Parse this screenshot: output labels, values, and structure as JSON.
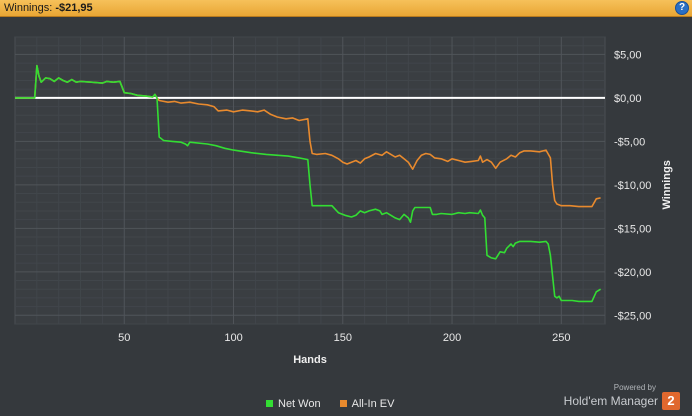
{
  "header": {
    "label": "Winnings:",
    "value": "-$21,95",
    "help_icon": "?"
  },
  "chart_data": {
    "type": "line",
    "title": "",
    "xlabel": "Hands",
    "ylabel": "Winnings",
    "xlim": [
      0,
      270
    ],
    "ylim": [
      -26,
      7
    ],
    "x_ticks": [
      50,
      100,
      150,
      200,
      250
    ],
    "x_tick_labels": [
      "50",
      "100",
      "150",
      "200",
      "250"
    ],
    "y_ticks": [
      5,
      0,
      -5,
      -10,
      -15,
      -20,
      -25
    ],
    "y_tick_labels": [
      "$5,00",
      "$0,00",
      "-$5,00",
      "-$10,00",
      "-$15,00",
      "-$20,00",
      "-$25,00"
    ],
    "grid": true,
    "legend_position": "bottom-center",
    "zero_line_color": "#ffffff",
    "series": [
      {
        "name": "Net Won",
        "color": "#33dd33",
        "points": [
          [
            0,
            0
          ],
          [
            9,
            0
          ],
          [
            10,
            3.7
          ],
          [
            11,
            2.5
          ],
          [
            12,
            1.8
          ],
          [
            14,
            2.3
          ],
          [
            16,
            2.2
          ],
          [
            18,
            1.9
          ],
          [
            20,
            2.3
          ],
          [
            22,
            2.0
          ],
          [
            24,
            1.8
          ],
          [
            26,
            2.1
          ],
          [
            28,
            1.8
          ],
          [
            30,
            1.9
          ],
          [
            35,
            1.8
          ],
          [
            40,
            1.7
          ],
          [
            42,
            1.9
          ],
          [
            45,
            1.8
          ],
          [
            48,
            1.9
          ],
          [
            50,
            0.6
          ],
          [
            53,
            0.5
          ],
          [
            56,
            0.3
          ],
          [
            60,
            0.2
          ],
          [
            63,
            0.1
          ],
          [
            64,
            0.4
          ],
          [
            65,
            0.0
          ],
          [
            66,
            -4.5
          ],
          [
            68,
            -4.9
          ],
          [
            72,
            -5.0
          ],
          [
            76,
            -5.1
          ],
          [
            78,
            -5.3
          ],
          [
            79,
            -5.5
          ],
          [
            80,
            -5.1
          ],
          [
            88,
            -5.3
          ],
          [
            92,
            -5.5
          ],
          [
            96,
            -5.8
          ],
          [
            100,
            -6.0
          ],
          [
            108,
            -6.3
          ],
          [
            115,
            -6.5
          ],
          [
            125,
            -6.7
          ],
          [
            130,
            -6.9
          ],
          [
            134,
            -7.1
          ],
          [
            135,
            -10.0
          ],
          [
            136,
            -12.4
          ],
          [
            145,
            -12.4
          ],
          [
            148,
            -13.2
          ],
          [
            151,
            -13.5
          ],
          [
            154,
            -13.7
          ],
          [
            156,
            -13.5
          ],
          [
            158,
            -13.0
          ],
          [
            160,
            -13.2
          ],
          [
            162,
            -13.0
          ],
          [
            165,
            -12.8
          ],
          [
            167,
            -13.0
          ],
          [
            168,
            -13.4
          ],
          [
            170,
            -13.2
          ],
          [
            172,
            -13.5
          ],
          [
            174,
            -13.8
          ],
          [
            176,
            -14.0
          ],
          [
            178,
            -13.4
          ],
          [
            180,
            -13.8
          ],
          [
            181,
            -14.3
          ],
          [
            182,
            -13.0
          ],
          [
            183,
            -12.6
          ],
          [
            190,
            -12.6
          ],
          [
            191,
            -13.4
          ],
          [
            193,
            -13.4
          ],
          [
            195,
            -13.3
          ],
          [
            200,
            -13.4
          ],
          [
            203,
            -13.2
          ],
          [
            206,
            -13.3
          ],
          [
            208,
            -13.2
          ],
          [
            212,
            -13.3
          ],
          [
            213,
            -12.9
          ],
          [
            214,
            -13.5
          ],
          [
            215,
            -13.8
          ],
          [
            216,
            -18.1
          ],
          [
            218,
            -18.4
          ],
          [
            220,
            -18.5
          ],
          [
            222,
            -17.7
          ],
          [
            224,
            -17.8
          ],
          [
            225,
            -17.3
          ],
          [
            227,
            -16.8
          ],
          [
            228,
            -17.1
          ],
          [
            229,
            -16.7
          ],
          [
            231,
            -16.5
          ],
          [
            236,
            -16.5
          ],
          [
            240,
            -16.6
          ],
          [
            243,
            -16.5
          ],
          [
            244,
            -16.8
          ],
          [
            245,
            -18.1
          ],
          [
            246,
            -20.5
          ],
          [
            247,
            -22.8
          ],
          [
            248,
            -23.0
          ],
          [
            249,
            -22.8
          ],
          [
            250,
            -23.3
          ],
          [
            255,
            -23.3
          ],
          [
            258,
            -23.4
          ],
          [
            264,
            -23.4
          ],
          [
            266,
            -22.3
          ],
          [
            268,
            -22.0
          ]
        ]
      },
      {
        "name": "All-In EV",
        "color": "#e88a2e",
        "points": [
          [
            0,
            0
          ],
          [
            9,
            0
          ],
          [
            10,
            3.7
          ],
          [
            11,
            2.5
          ],
          [
            12,
            1.8
          ],
          [
            14,
            2.3
          ],
          [
            16,
            2.2
          ],
          [
            18,
            1.9
          ],
          [
            20,
            2.3
          ],
          [
            22,
            2.0
          ],
          [
            24,
            1.8
          ],
          [
            26,
            2.1
          ],
          [
            28,
            1.8
          ],
          [
            30,
            1.9
          ],
          [
            35,
            1.8
          ],
          [
            40,
            1.7
          ],
          [
            42,
            1.9
          ],
          [
            45,
            1.8
          ],
          [
            48,
            1.9
          ],
          [
            50,
            0.6
          ],
          [
            53,
            0.5
          ],
          [
            56,
            0.3
          ],
          [
            60,
            0.2
          ],
          [
            63,
            0.1
          ],
          [
            64,
            0.4
          ],
          [
            65,
            0.0
          ],
          [
            66,
            -0.3
          ],
          [
            70,
            -0.5
          ],
          [
            73,
            -0.4
          ],
          [
            76,
            -0.6
          ],
          [
            80,
            -0.5
          ],
          [
            84,
            -0.7
          ],
          [
            88,
            -0.8
          ],
          [
            91,
            -1.0
          ],
          [
            93,
            -1.5
          ],
          [
            97,
            -1.4
          ],
          [
            100,
            -1.6
          ],
          [
            104,
            -1.4
          ],
          [
            108,
            -1.5
          ],
          [
            111,
            -1.6
          ],
          [
            114,
            -1.4
          ],
          [
            117,
            -1.9
          ],
          [
            120,
            -2.2
          ],
          [
            124,
            -2.4
          ],
          [
            127,
            -2.3
          ],
          [
            130,
            -2.6
          ],
          [
            134,
            -2.4
          ],
          [
            135,
            -5.0
          ],
          [
            136,
            -6.4
          ],
          [
            138,
            -6.5
          ],
          [
            142,
            -6.4
          ],
          [
            145,
            -6.6
          ],
          [
            148,
            -7.0
          ],
          [
            150,
            -7.4
          ],
          [
            152,
            -7.6
          ],
          [
            154,
            -7.4
          ],
          [
            156,
            -7.2
          ],
          [
            158,
            -7.5
          ],
          [
            160,
            -7.0
          ],
          [
            162,
            -6.8
          ],
          [
            165,
            -6.4
          ],
          [
            168,
            -6.6
          ],
          [
            170,
            -6.2
          ],
          [
            172,
            -6.5
          ],
          [
            174,
            -6.8
          ],
          [
            176,
            -6.6
          ],
          [
            178,
            -7.0
          ],
          [
            180,
            -7.4
          ],
          [
            182,
            -8.2
          ],
          [
            184,
            -7.2
          ],
          [
            186,
            -6.6
          ],
          [
            188,
            -6.4
          ],
          [
            190,
            -6.5
          ],
          [
            192,
            -6.9
          ],
          [
            195,
            -7.0
          ],
          [
            198,
            -7.3
          ],
          [
            200,
            -7.0
          ],
          [
            203,
            -7.2
          ],
          [
            206,
            -7.4
          ],
          [
            209,
            -7.3
          ],
          [
            212,
            -7.2
          ],
          [
            213,
            -6.7
          ],
          [
            214,
            -7.4
          ],
          [
            216,
            -7.1
          ],
          [
            218,
            -7.4
          ],
          [
            220,
            -8.1
          ],
          [
            222,
            -7.4
          ],
          [
            225,
            -7.0
          ],
          [
            227,
            -6.6
          ],
          [
            229,
            -6.8
          ],
          [
            231,
            -6.3
          ],
          [
            233,
            -6.1
          ],
          [
            236,
            -6.1
          ],
          [
            240,
            -6.2
          ],
          [
            243,
            -6.0
          ],
          [
            245,
            -6.9
          ],
          [
            246,
            -10.0
          ],
          [
            247,
            -11.8
          ],
          [
            248,
            -12.2
          ],
          [
            250,
            -12.4
          ],
          [
            254,
            -12.4
          ],
          [
            258,
            -12.5
          ],
          [
            264,
            -12.5
          ],
          [
            266,
            -11.6
          ],
          [
            268,
            -11.5
          ]
        ]
      }
    ]
  },
  "legend": [
    {
      "label": "Net Won",
      "color": "#33dd33"
    },
    {
      "label": "All-In EV",
      "color": "#e88a2e"
    }
  ],
  "branding": {
    "powered_by": "Powered by",
    "product": "Hold'em Manager",
    "badge": "2"
  }
}
